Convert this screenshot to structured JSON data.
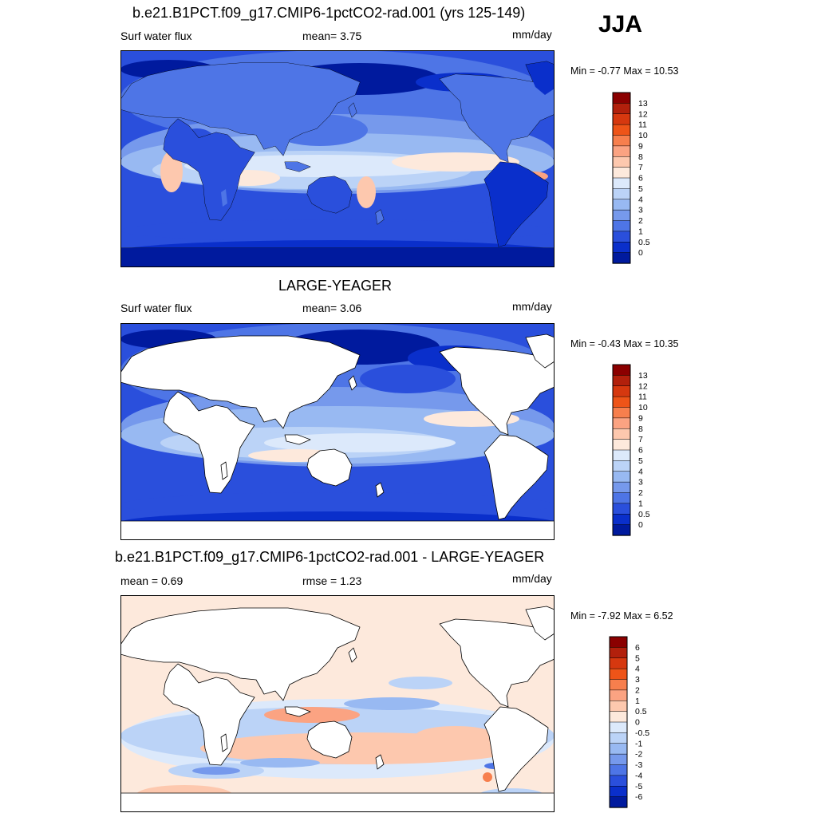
{
  "season": "JJA",
  "panels": [
    {
      "title": "b.e21.B1PCT.f09_g17.CMIP6-1pctCO2-rad.001 (yrs 125-149)",
      "left_label": "Surf water flux",
      "center_label": "mean=   3.75",
      "units": "mm/day",
      "minmax": "Min =  -0.77 Max =  10.53",
      "colorbar_ticks": [
        "13",
        "12",
        "11",
        "10",
        "9",
        "8",
        "7",
        "6",
        "5",
        "4",
        "3",
        "2",
        "1",
        "0.5",
        "0"
      ],
      "colorbar_colors": [
        "#8b0000",
        "#b2200c",
        "#d6380f",
        "#ee5418",
        "#f77f4d",
        "#fba382",
        "#fdc8ae",
        "#fde9dc",
        "#dce9fb",
        "#bbd3f7",
        "#98b9f2",
        "#7699ec",
        "#4e75e6",
        "#2a4fdc",
        "#0a2fcb",
        "#001a9e"
      ]
    },
    {
      "title": "LARGE-YEAGER",
      "left_label": "Surf water flux",
      "center_label": "mean=   3.06",
      "units": "mm/day",
      "minmax": "Min =  -0.43 Max =  10.35",
      "colorbar_ticks": [
        "13",
        "12",
        "11",
        "10",
        "9",
        "8",
        "7",
        "6",
        "5",
        "4",
        "3",
        "2",
        "1",
        "0.5",
        "0"
      ],
      "colorbar_colors": [
        "#8b0000",
        "#b2200c",
        "#d6380f",
        "#ee5418",
        "#f77f4d",
        "#fba382",
        "#fdc8ae",
        "#fde9dc",
        "#dce9fb",
        "#bbd3f7",
        "#98b9f2",
        "#7699ec",
        "#4e75e6",
        "#2a4fdc",
        "#0a2fcb",
        "#001a9e"
      ]
    },
    {
      "title": "b.e21.B1PCT.f09_g17.CMIP6-1pctCO2-rad.001 - LARGE-YEAGER",
      "left_label": "mean =   0.69",
      "center_label": "rmse =   1.23",
      "units": "mm/day",
      "minmax": "Min =  -7.92 Max =   6.52",
      "colorbar_ticks": [
        "6",
        "5",
        "4",
        "3",
        "2",
        "1",
        "0.5",
        "0",
        "-0.5",
        "-1",
        "-2",
        "-3",
        "-4",
        "-5",
        "-6"
      ],
      "colorbar_colors": [
        "#8b0000",
        "#b2200c",
        "#d6380f",
        "#ee5418",
        "#f77f4d",
        "#fba382",
        "#fdc8ae",
        "#fde9dc",
        "#dce9fb",
        "#bbd3f7",
        "#98b9f2",
        "#7699ec",
        "#4e75e6",
        "#2a4fdc",
        "#0a2fcb",
        "#001a9e"
      ]
    }
  ],
  "chart_data": [
    {
      "type": "heatmap",
      "title": "b.e21.B1PCT.f09_g17.CMIP6-1pctCO2-rad.001 (yrs 125-149)",
      "variable": "Surf water flux",
      "units": "mm/day",
      "season": "JJA",
      "mean": 3.75,
      "min": -0.77,
      "max": 10.53,
      "contour_levels": [
        0,
        0.5,
        1,
        2,
        3,
        4,
        5,
        6,
        7,
        8,
        9,
        10,
        11,
        12,
        13
      ]
    },
    {
      "type": "heatmap",
      "title": "LARGE-YEAGER",
      "variable": "Surf water flux",
      "units": "mm/day",
      "season": "JJA",
      "mean": 3.06,
      "min": -0.43,
      "max": 10.35,
      "contour_levels": [
        0,
        0.5,
        1,
        2,
        3,
        4,
        5,
        6,
        7,
        8,
        9,
        10,
        11,
        12,
        13
      ]
    },
    {
      "type": "heatmap",
      "title": "b.e21.B1PCT.f09_g17.CMIP6-1pctCO2-rad.001 - LARGE-YEAGER",
      "units": "mm/day",
      "season": "JJA",
      "mean": 0.69,
      "rmse": 1.23,
      "min": -7.92,
      "max": 6.52,
      "contour_levels": [
        -6,
        -5,
        -4,
        -3,
        -2,
        -1,
        -0.5,
        0,
        0.5,
        1,
        2,
        3,
        4,
        5,
        6
      ]
    }
  ]
}
